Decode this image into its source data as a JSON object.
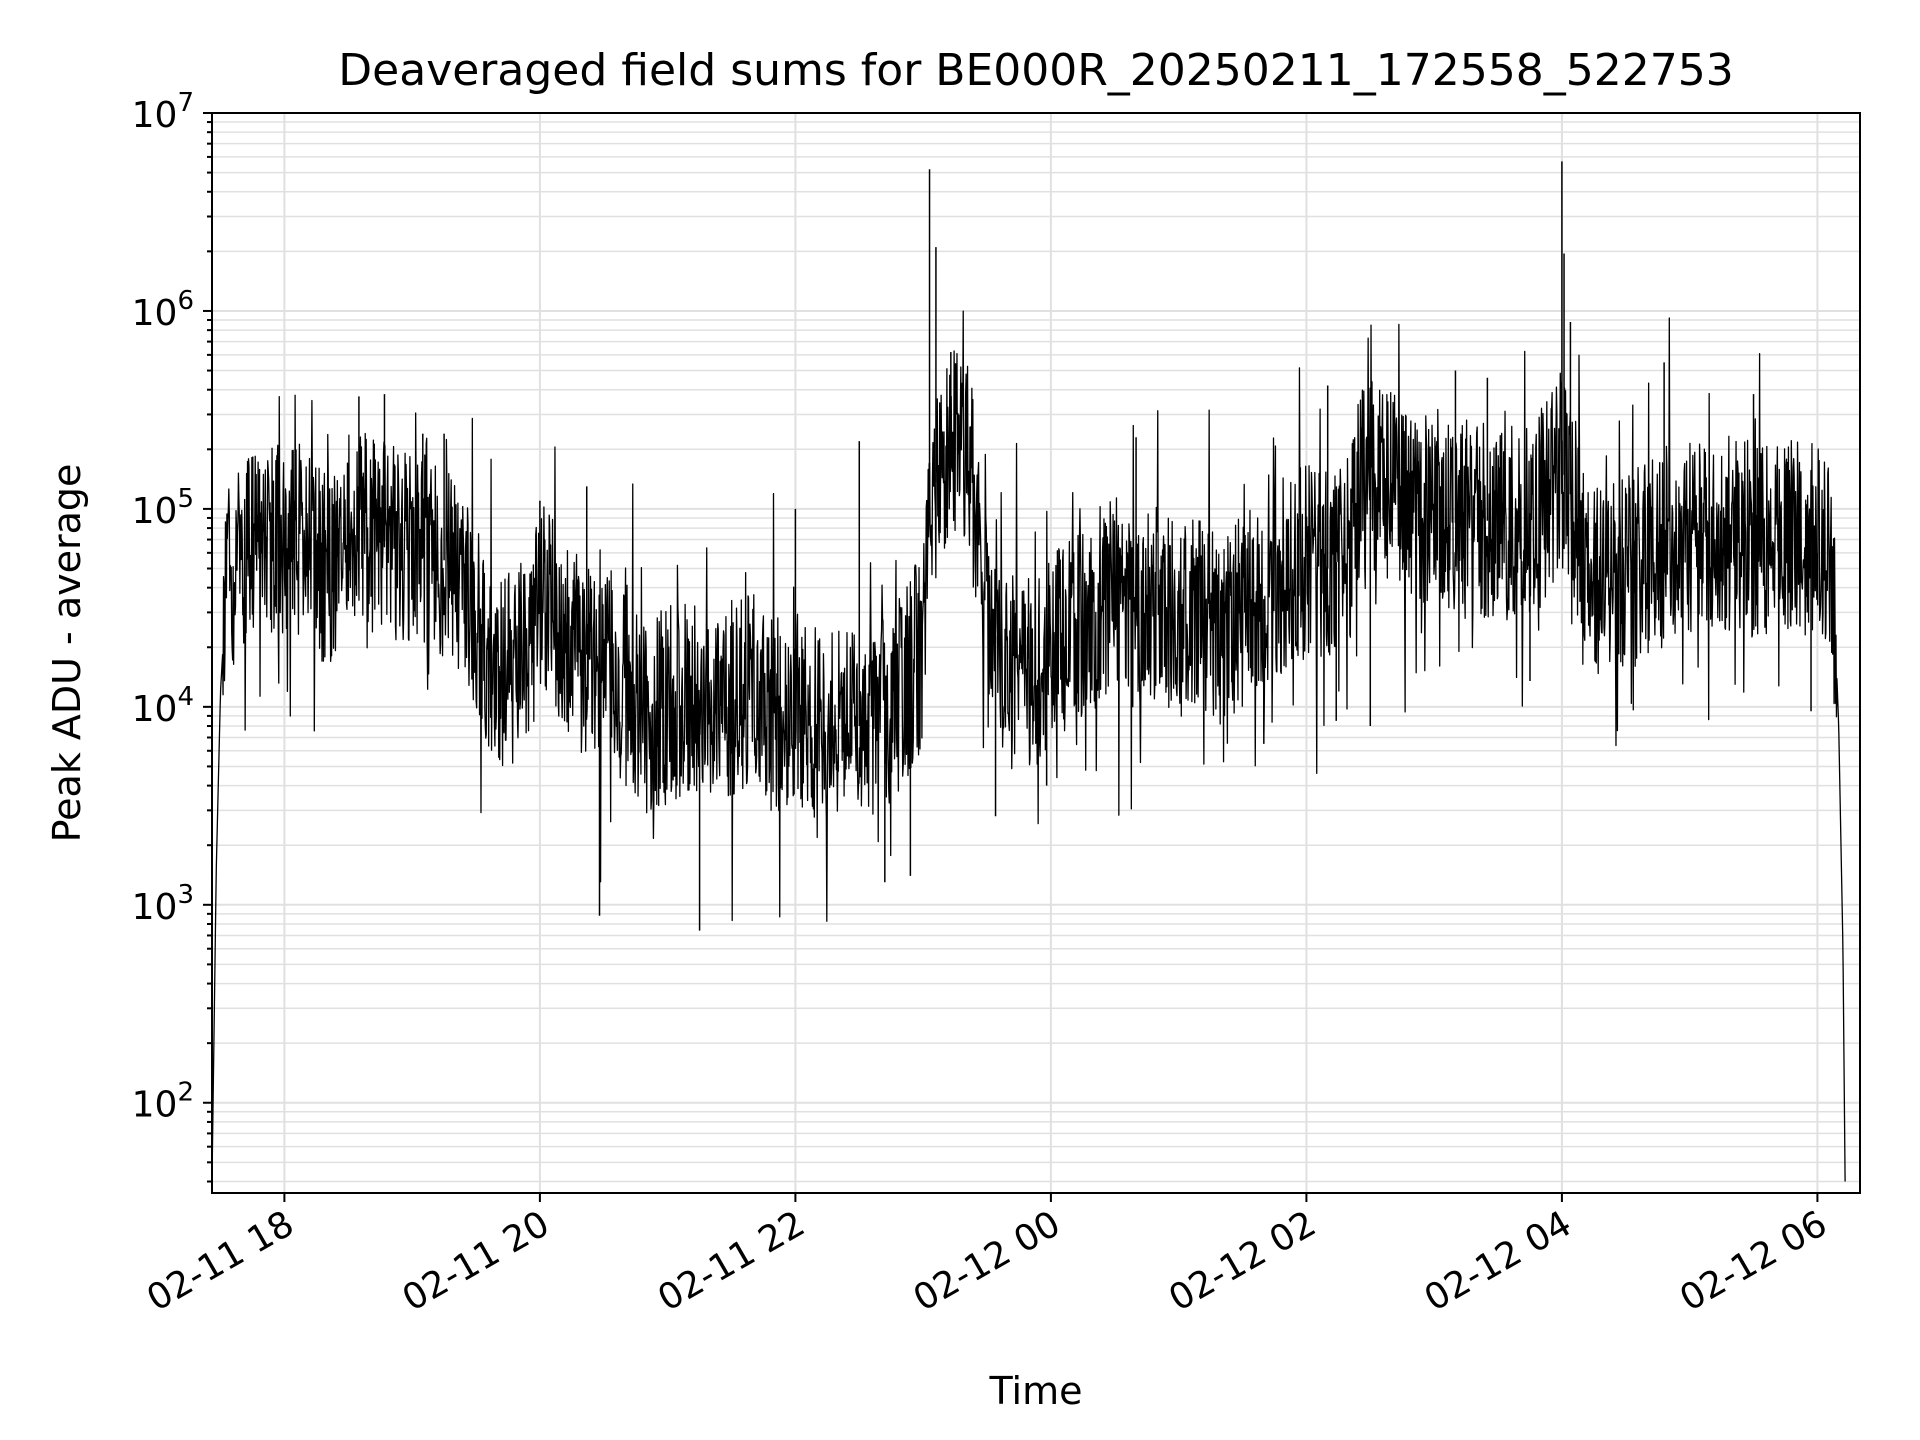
{
  "chart_data": {
    "type": "line",
    "title": "Deaveraged field sums for BE000R_20250211_172558_522753",
    "xlabel": "Time",
    "ylabel": "Peak ADU - average",
    "x_scale": "time",
    "y_scale": "log",
    "xlim": [
      "2025-02-11T17:26",
      "2025-02-12T06:20"
    ],
    "ylim": [
      35,
      10000000
    ],
    "x_ticks": [
      {
        "value": "2025-02-11T18:00",
        "label": "02-11 18"
      },
      {
        "value": "2025-02-11T20:00",
        "label": "02-11 20"
      },
      {
        "value": "2025-02-11T22:00",
        "label": "02-11 22"
      },
      {
        "value": "2025-02-12T00:00",
        "label": "02-12 00"
      },
      {
        "value": "2025-02-12T02:00",
        "label": "02-12 02"
      },
      {
        "value": "2025-02-12T04:00",
        "label": "02-12 04"
      },
      {
        "value": "2025-02-12T06:00",
        "label": "02-12 06"
      }
    ],
    "y_ticks": [
      {
        "value": 100,
        "base": "10",
        "exp": "2"
      },
      {
        "value": 1000,
        "base": "10",
        "exp": "3"
      },
      {
        "value": 10000,
        "base": "10",
        "exp": "4"
      },
      {
        "value": 100000,
        "base": "10",
        "exp": "5"
      },
      {
        "value": 1000000,
        "base": "10",
        "exp": "6"
      },
      {
        "value": 10000000,
        "base": "10",
        "exp": "7"
      }
    ],
    "grid": true,
    "legend": "none",
    "line_color": "#000000",
    "grid_color": "#e0e0e0",
    "series": [
      {
        "points": [
          [
            "2025-02-11T17:26",
            40
          ],
          [
            "2025-02-11T17:28",
            1500
          ],
          [
            "2025-02-11T17:30",
            12000
          ],
          [
            "2025-02-11T17:33",
            45000
          ],
          [
            "2025-02-11T17:38",
            55000
          ],
          [
            "2025-02-11T17:45",
            60000
          ],
          [
            "2025-02-11T17:55",
            70000
          ],
          [
            "2025-02-11T18:05",
            75000
          ],
          [
            "2025-02-11T18:15",
            55000
          ],
          [
            "2025-02-11T18:25",
            45000
          ],
          [
            "2025-02-11T18:35",
            80000
          ],
          [
            "2025-02-11T18:45",
            70000
          ],
          [
            "2025-02-11T18:55",
            65000
          ],
          [
            "2025-02-11T19:05",
            60000
          ],
          [
            "2025-02-11T19:15",
            55000
          ],
          [
            "2025-02-11T19:25",
            45000
          ],
          [
            "2025-02-11T19:35",
            18000
          ],
          [
            "2025-02-11T19:45",
            15000
          ],
          [
            "2025-02-11T19:55",
            20000
          ],
          [
            "2025-02-11T20:00",
            35000
          ],
          [
            "2025-02-11T20:10",
            25000
          ],
          [
            "2025-02-11T20:20",
            18000
          ],
          [
            "2025-02-11T20:30",
            20000
          ],
          [
            "2025-02-11T20:40",
            12000
          ],
          [
            "2025-02-11T20:50",
            9000
          ],
          [
            "2025-02-11T21:00",
            10000
          ],
          [
            "2025-02-11T21:10",
            12000
          ],
          [
            "2025-02-11T21:20",
            8000
          ],
          [
            "2025-02-11T21:30",
            11000
          ],
          [
            "2025-02-11T21:40",
            12000
          ],
          [
            "2025-02-11T21:50",
            9000
          ],
          [
            "2025-02-11T22:00",
            10000
          ],
          [
            "2025-02-11T22:10",
            8500
          ],
          [
            "2025-02-11T22:20",
            9000
          ],
          [
            "2025-02-11T22:30",
            8000
          ],
          [
            "2025-02-11T22:40",
            9000
          ],
          [
            "2025-02-11T22:50",
            12000
          ],
          [
            "2025-02-11T23:00",
            20000
          ],
          [
            "2025-02-11T23:03",
            90000
          ],
          [
            "2025-02-11T23:08",
            180000
          ],
          [
            "2025-02-11T23:15",
            220000
          ],
          [
            "2025-02-11T23:22",
            180000
          ],
          [
            "2025-02-11T23:30",
            30000
          ],
          [
            "2025-02-11T23:40",
            15000
          ],
          [
            "2025-02-11T23:50",
            15000
          ],
          [
            "2025-02-12T00:00",
            18000
          ],
          [
            "2025-02-12T00:10",
            25000
          ],
          [
            "2025-02-12T00:20",
            30000
          ],
          [
            "2025-02-12T00:30",
            40000
          ],
          [
            "2025-02-12T00:40",
            30000
          ],
          [
            "2025-02-12T00:50",
            35000
          ],
          [
            "2025-02-12T01:00",
            25000
          ],
          [
            "2025-02-12T01:10",
            30000
          ],
          [
            "2025-02-12T01:20",
            25000
          ],
          [
            "2025-02-12T01:30",
            30000
          ],
          [
            "2025-02-12T01:40",
            35000
          ],
          [
            "2025-02-12T01:50",
            45000
          ],
          [
            "2025-02-12T02:00",
            55000
          ],
          [
            "2025-02-12T02:10",
            50000
          ],
          [
            "2025-02-12T02:20",
            60000
          ],
          [
            "2025-02-12T02:25",
            120000
          ],
          [
            "2025-02-12T02:30",
            150000
          ],
          [
            "2025-02-12T02:40",
            130000
          ],
          [
            "2025-02-12T02:50",
            110000
          ],
          [
            "2025-02-12T03:00",
            90000
          ],
          [
            "2025-02-12T03:10",
            85000
          ],
          [
            "2025-02-12T03:20",
            95000
          ],
          [
            "2025-02-12T03:30",
            80000
          ],
          [
            "2025-02-12T03:40",
            90000
          ],
          [
            "2025-02-12T03:50",
            100000
          ],
          [
            "2025-02-12T04:00",
            160000
          ],
          [
            "2025-02-12T04:05",
            110000
          ],
          [
            "2025-02-12T04:10",
            50000
          ],
          [
            "2025-02-12T04:20",
            45000
          ],
          [
            "2025-02-12T04:30",
            50000
          ],
          [
            "2025-02-12T04:40",
            55000
          ],
          [
            "2025-02-12T04:50",
            65000
          ],
          [
            "2025-02-12T05:00",
            75000
          ],
          [
            "2025-02-12T05:10",
            70000
          ],
          [
            "2025-02-12T05:20",
            75000
          ],
          [
            "2025-02-12T05:30",
            70000
          ],
          [
            "2025-02-12T05:40",
            72000
          ],
          [
            "2025-02-12T05:50",
            70000
          ],
          [
            "2025-02-12T06:00",
            75000
          ],
          [
            "2025-02-12T06:05",
            65000
          ],
          [
            "2025-02-12T06:08",
            30000
          ],
          [
            "2025-02-12T06:10",
            8000
          ],
          [
            "2025-02-12T06:12",
            600
          ],
          [
            "2025-02-12T06:13",
            40
          ]
        ]
      }
    ],
    "spikes": [
      [
        "2025-02-11T18:35",
        370000
      ],
      [
        "2025-02-11T18:47",
        380000
      ],
      [
        "2025-02-11T19:05",
        240000
      ],
      [
        "2025-02-11T19:15",
        240000
      ],
      [
        "2025-02-11T20:00",
        110000
      ],
      [
        "2025-02-11T20:22",
        130000
      ],
      [
        "2025-02-11T20:28",
        880
      ],
      [
        "2025-02-11T21:15",
        740
      ],
      [
        "2025-02-11T22:00",
        100000
      ],
      [
        "2025-02-11T22:30",
        220000
      ],
      [
        "2025-02-11T22:42",
        1300
      ],
      [
        "2025-02-11T22:54",
        1400
      ],
      [
        "2025-02-11T23:03",
        5200000
      ],
      [
        "2025-02-11T23:06",
        2100000
      ],
      [
        "2025-02-11T23:13",
        620000
      ],
      [
        "2025-02-11T23:34",
        2800
      ],
      [
        "2025-02-11T23:58",
        4000
      ],
      [
        "2025-02-12T00:40",
        230000
      ],
      [
        "2025-02-12T01:40",
        6500
      ],
      [
        "2025-02-12T02:10",
        420000
      ],
      [
        "2025-02-12T02:14",
        8500
      ],
      [
        "2025-02-12T02:30",
        8000
      ],
      [
        "2025-02-12T03:10",
        500000
      ],
      [
        "2025-02-12T03:25",
        460000
      ],
      [
        "2025-02-12T03:45",
        13500
      ],
      [
        "2025-02-12T04:00",
        5700000
      ],
      [
        "2025-02-12T04:01",
        1950000
      ],
      [
        "2025-02-12T04:04",
        880000
      ],
      [
        "2025-02-12T04:48",
        550000
      ],
      [
        "2025-02-12T05:30",
        380000
      ],
      [
        "2025-02-12T05:57",
        9500
      ]
    ]
  }
}
